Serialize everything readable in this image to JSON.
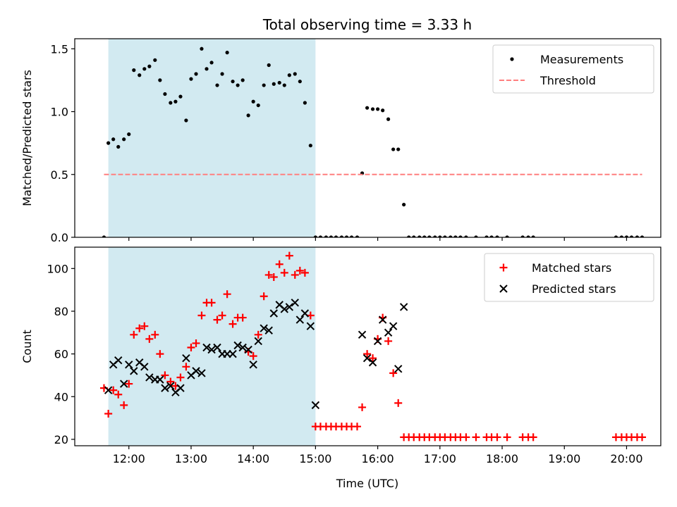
{
  "chart_data": {
    "type": "scatter",
    "title": "Total observing time = 3.33 h",
    "xlabel": "Time (UTC)",
    "x_ticks": [
      "12:00",
      "13:00",
      "14:00",
      "15:00",
      "16:00",
      "17:00",
      "18:00",
      "19:00",
      "20:00"
    ],
    "x_tick_hours": [
      12,
      13,
      14,
      15,
      16,
      17,
      18,
      19,
      20
    ],
    "xlim_hours": [
      11.13,
      20.55
    ],
    "observing_window_hours": [
      11.67,
      15.0
    ],
    "colors": {
      "window": "#add8e6",
      "measurements": "#000000",
      "threshold": "#ff7f7f",
      "matched": "#ff0000",
      "predicted": "#000000"
    },
    "panels": [
      {
        "ylabel": "Matched/Predicted stars",
        "ylim": [
          0,
          1.58
        ],
        "y_ticks": [
          "0.0",
          "0.5",
          "1.0",
          "1.5"
        ],
        "y_tick_values": [
          0,
          0.5,
          1.0,
          1.5
        ],
        "legend_position": "upper-right",
        "series": [
          {
            "name": "Measurements",
            "kind": "dots",
            "x": [
              11.6,
              11.67,
              11.75,
              11.83,
              11.92,
              12.0,
              12.08,
              12.17,
              12.25,
              12.33,
              12.42,
              12.5,
              12.58,
              12.67,
              12.75,
              12.83,
              12.92,
              13.0,
              13.08,
              13.17,
              13.25,
              13.33,
              13.42,
              13.5,
              13.58,
              13.67,
              13.75,
              13.83,
              13.92,
              14.0,
              14.08,
              14.17,
              14.25,
              14.33,
              14.42,
              14.5,
              14.58,
              14.67,
              14.75,
              14.83,
              14.92,
              15.0,
              15.08,
              15.17,
              15.25,
              15.33,
              15.42,
              15.5,
              15.58,
              15.67,
              15.75,
              15.83,
              15.92,
              16.0,
              16.08,
              16.17,
              16.25,
              16.33,
              16.42,
              16.5,
              16.58,
              16.67,
              16.75,
              16.83,
              16.92,
              17.0,
              17.08,
              17.17,
              17.25,
              17.33,
              17.42,
              17.58,
              17.75,
              17.83,
              17.92,
              18.08,
              18.33,
              18.42,
              18.5,
              19.83,
              19.92,
              20.0,
              20.08,
              20.17,
              20.25
            ],
            "y": [
              0.0,
              0.75,
              0.78,
              0.72,
              0.78,
              0.82,
              1.33,
              1.29,
              1.34,
              1.36,
              1.41,
              1.25,
              1.14,
              1.07,
              1.08,
              1.12,
              0.93,
              1.26,
              1.3,
              1.5,
              1.34,
              1.39,
              1.21,
              1.3,
              1.47,
              1.24,
              1.21,
              1.25,
              0.97,
              1.08,
              1.05,
              1.21,
              1.37,
              1.22,
              1.23,
              1.21,
              1.29,
              1.3,
              1.24,
              1.07,
              0.73,
              0.0,
              0.0,
              0.0,
              0.0,
              0.0,
              0.0,
              0.0,
              0.0,
              0.0,
              0.51,
              1.03,
              1.02,
              1.02,
              1.01,
              0.94,
              0.7,
              0.7,
              0.26,
              0.0,
              0.0,
              0.0,
              0.0,
              0.0,
              0.0,
              0.0,
              0.0,
              0.0,
              0.0,
              0.0,
              0.0,
              0.0,
              0.0,
              0.0,
              0.0,
              0.0,
              0.0,
              0.0,
              0.0,
              0.0,
              0.0,
              0.0,
              0.0,
              0.0,
              0.0
            ]
          },
          {
            "name": "Threshold",
            "kind": "dashed-line",
            "x": [
              11.6,
              20.25
            ],
            "y": [
              0.5,
              0.5
            ]
          }
        ]
      },
      {
        "ylabel": "Count",
        "ylim": [
          17,
          110
        ],
        "y_ticks": [
          "20",
          "40",
          "60",
          "80",
          "100"
        ],
        "y_tick_values": [
          20,
          40,
          60,
          80,
          100
        ],
        "legend_position": "upper-right",
        "series": [
          {
            "name": "Matched stars",
            "kind": "plus",
            "x": [
              11.6,
              11.67,
              11.75,
              11.83,
              11.92,
              12.0,
              12.08,
              12.17,
              12.25,
              12.33,
              12.42,
              12.5,
              12.58,
              12.67,
              12.75,
              12.83,
              12.92,
              13.0,
              13.08,
              13.17,
              13.25,
              13.33,
              13.42,
              13.5,
              13.58,
              13.67,
              13.75,
              13.83,
              13.92,
              14.0,
              14.08,
              14.17,
              14.25,
              14.33,
              14.42,
              14.5,
              14.58,
              14.67,
              14.75,
              14.83,
              14.92,
              15.0,
              15.08,
              15.17,
              15.25,
              15.33,
              15.42,
              15.5,
              15.58,
              15.67,
              15.75,
              15.83,
              15.92,
              16.0,
              16.08,
              16.17,
              16.25,
              16.33,
              16.42,
              16.5,
              16.58,
              16.67,
              16.75,
              16.83,
              16.92,
              17.0,
              17.08,
              17.17,
              17.25,
              17.33,
              17.42,
              17.58,
              17.75,
              17.83,
              17.92,
              18.08,
              18.33,
              18.42,
              18.5,
              19.83,
              19.92,
              20.0,
              20.08,
              20.17,
              20.25
            ],
            "y": [
              44,
              32,
              43,
              41,
              36,
              46,
              69,
              72,
              73,
              67,
              69,
              60,
              50,
              47,
              45,
              49,
              54,
              63,
              65,
              78,
              84,
              84,
              76,
              78,
              88,
              74,
              77,
              77,
              61,
              59,
              69,
              87,
              97,
              96,
              102,
              98,
              106,
              97,
              99,
              98,
              78,
              26,
              26,
              26,
              26,
              26,
              26,
              26,
              26,
              26,
              35,
              60,
              58,
              67,
              77,
              66,
              51,
              37,
              21,
              21,
              21,
              21,
              21,
              21,
              21,
              21,
              21,
              21,
              21,
              21,
              21,
              21,
              21,
              21,
              21,
              21,
              21,
              21,
              21,
              21,
              21,
              21,
              21,
              21,
              21
            ]
          },
          {
            "name": "Predicted stars",
            "kind": "x",
            "x": [
              11.67,
              11.75,
              11.83,
              11.92,
              12.0,
              12.08,
              12.17,
              12.25,
              12.33,
              12.42,
              12.5,
              12.58,
              12.67,
              12.75,
              12.83,
              12.92,
              13.0,
              13.08,
              13.17,
              13.25,
              13.33,
              13.42,
              13.5,
              13.58,
              13.67,
              13.75,
              13.83,
              13.92,
              14.0,
              14.08,
              14.17,
              14.25,
              14.33,
              14.42,
              14.5,
              14.58,
              14.67,
              14.75,
              14.83,
              14.92,
              15.0,
              15.75,
              15.83,
              15.92,
              16.0,
              16.08,
              16.17,
              16.25,
              16.33,
              16.42
            ],
            "y": [
              43,
              55,
              57,
              46,
              55,
              52,
              56,
              54,
              49,
              48,
              48,
              44,
              45,
              42,
              44,
              58,
              50,
              52,
              51,
              63,
              62,
              63,
              60,
              60,
              60,
              64,
              63,
              62,
              55,
              66,
              72,
              71,
              79,
              83,
              81,
              82,
              84,
              76,
              79,
              73,
              36,
              69,
              58,
              56,
              66,
              76,
              70,
              73,
              53,
              82
            ]
          }
        ]
      }
    ]
  }
}
